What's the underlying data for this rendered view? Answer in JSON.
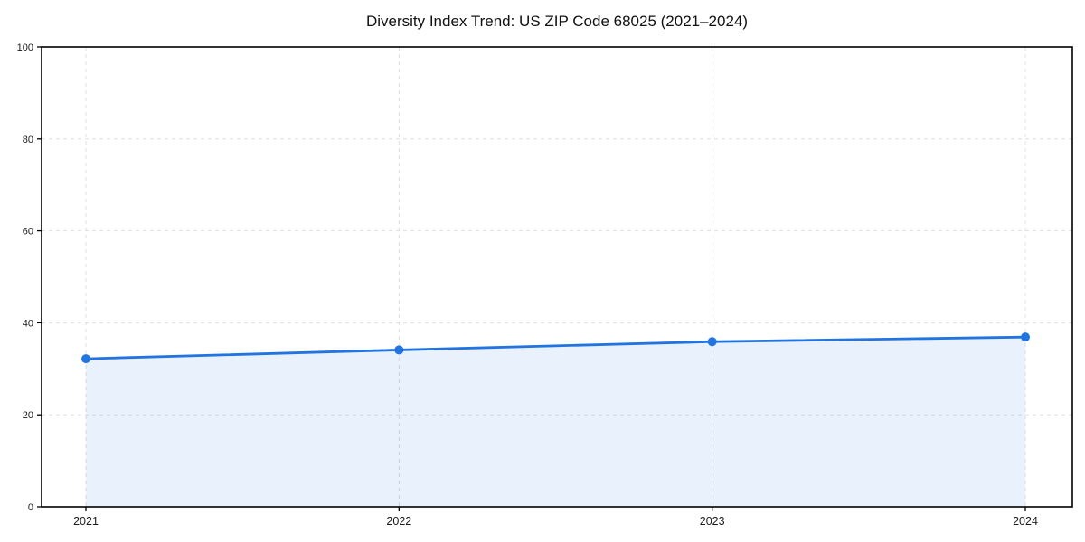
{
  "chart_data": {
    "type": "area",
    "title": "Diversity Index Trend: US ZIP Code 68025 (2021–2024)",
    "categories": [
      "2021",
      "2022",
      "2023",
      "2024"
    ],
    "series": [
      {
        "name": "Diversity Index",
        "values": [
          32.2,
          34.1,
          35.9,
          36.9
        ]
      }
    ],
    "xlabel": "",
    "ylabel": "",
    "ylim": [
      0,
      100
    ],
    "yticks": [
      0,
      20,
      40,
      60,
      80,
      100
    ],
    "grid": "dashed-both-axes",
    "legend_position": "none",
    "marker": "circle",
    "colors": {
      "line": "#2274e0",
      "area_fill": "#2274e0",
      "area_fill_rendered": "#e9f1fc",
      "grid": "#dfdfdf",
      "frame": "#000000",
      "tick_text": "#1a1a1a",
      "title_text": "#111111",
      "background": "#ffffff"
    }
  }
}
